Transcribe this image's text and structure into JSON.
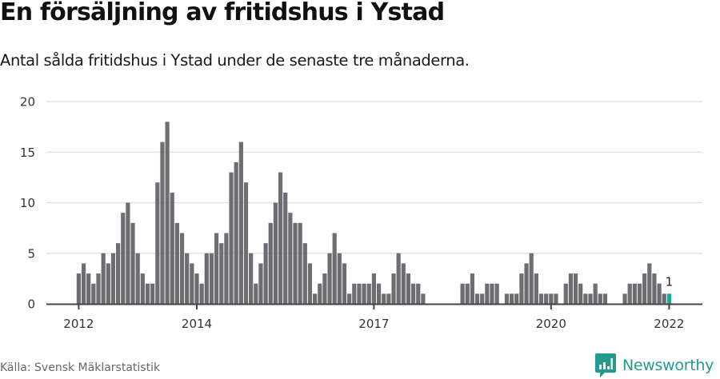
{
  "header": {
    "title": "En försäljning av fritidshus i Ystad",
    "subtitle": "Antal sålda fritidshus i Ystad under de senaste tre månaderna."
  },
  "footer": {
    "source": "Källa: Svensk Mäklarstatistik",
    "brand": "Newsworthy",
    "brand_icon": "bar-chart-speech-bubble-icon"
  },
  "colors": {
    "bar": "#6e6d72",
    "highlight": "#1fa89b",
    "grid": "#e3e3e3",
    "axis": "#444444",
    "brand": "#229a8e"
  },
  "chart_data": {
    "type": "bar",
    "title": "En försäljning av fritidshus i Ystad",
    "subtitle": "Antal sålda fritidshus i Ystad under de senaste tre månaderna.",
    "xlabel": "",
    "ylabel": "",
    "ylim": [
      0,
      20
    ],
    "yticks": [
      0,
      5,
      10,
      15,
      20
    ],
    "xticks": [
      {
        "label": "2012",
        "index": 0
      },
      {
        "label": "2014",
        "index": 24
      },
      {
        "label": "2017",
        "index": 60
      },
      {
        "label": "2020",
        "index": 96
      },
      {
        "label": "2022",
        "index": 120
      }
    ],
    "grid": true,
    "legend": null,
    "frequency": "monthly",
    "start": "2012-01",
    "end": "2022-01",
    "categories": [
      "2012-01",
      "2012-02",
      "2012-03",
      "2012-04",
      "2012-05",
      "2012-06",
      "2012-07",
      "2012-08",
      "2012-09",
      "2012-10",
      "2012-11",
      "2012-12",
      "2013-01",
      "2013-02",
      "2013-03",
      "2013-04",
      "2013-05",
      "2013-06",
      "2013-07",
      "2013-08",
      "2013-09",
      "2013-10",
      "2013-11",
      "2013-12",
      "2014-01",
      "2014-02",
      "2014-03",
      "2014-04",
      "2014-05",
      "2014-06",
      "2014-07",
      "2014-08",
      "2014-09",
      "2014-10",
      "2014-11",
      "2014-12",
      "2015-01",
      "2015-02",
      "2015-03",
      "2015-04",
      "2015-05",
      "2015-06",
      "2015-07",
      "2015-08",
      "2015-09",
      "2015-10",
      "2015-11",
      "2015-12",
      "2016-01",
      "2016-02",
      "2016-03",
      "2016-04",
      "2016-05",
      "2016-06",
      "2016-07",
      "2016-08",
      "2016-09",
      "2016-10",
      "2016-11",
      "2016-12",
      "2017-01",
      "2017-02",
      "2017-03",
      "2017-04",
      "2017-05",
      "2017-06",
      "2017-07",
      "2017-08",
      "2017-09",
      "2017-10",
      "2017-11",
      "2017-12",
      "2018-01",
      "2018-02",
      "2018-03",
      "2018-04",
      "2018-05",
      "2018-06",
      "2018-07",
      "2018-08",
      "2018-09",
      "2018-10",
      "2018-11",
      "2018-12",
      "2019-01",
      "2019-02",
      "2019-03",
      "2019-04",
      "2019-05",
      "2019-06",
      "2019-07",
      "2019-08",
      "2019-09",
      "2019-10",
      "2019-11",
      "2019-12",
      "2020-01",
      "2020-02",
      "2020-03",
      "2020-04",
      "2020-05",
      "2020-06",
      "2020-07",
      "2020-08",
      "2020-09",
      "2020-10",
      "2020-11",
      "2020-12",
      "2021-01",
      "2021-02",
      "2021-03",
      "2021-04",
      "2021-05",
      "2021-06",
      "2021-07",
      "2021-08",
      "2021-09",
      "2021-10",
      "2021-11",
      "2021-12",
      "2022-01"
    ],
    "values": [
      3,
      4,
      3,
      2,
      3,
      5,
      4,
      5,
      6,
      9,
      10,
      8,
      5,
      3,
      2,
      2,
      12,
      16,
      18,
      11,
      8,
      7,
      5,
      4,
      3,
      2,
      5,
      5,
      7,
      6,
      7,
      13,
      14,
      16,
      12,
      5,
      2,
      4,
      6,
      8,
      10,
      13,
      11,
      9,
      8,
      8,
      6,
      4,
      1,
      2,
      3,
      5,
      7,
      5,
      4,
      1,
      2,
      2,
      2,
      2,
      3,
      2,
      1,
      1,
      3,
      5,
      4,
      3,
      2,
      2,
      1,
      0,
      0,
      0,
      0,
      0,
      0,
      0,
      2,
      2,
      3,
      1,
      1,
      2,
      2,
      2,
      0,
      1,
      1,
      1,
      3,
      4,
      5,
      3,
      1,
      1,
      1,
      1,
      0,
      2,
      3,
      3,
      2,
      1,
      1,
      2,
      1,
      1,
      0,
      0,
      0,
      1,
      2,
      2,
      2,
      3,
      4,
      3,
      2,
      1,
      1
    ],
    "highlight": {
      "index": 120,
      "label": "1"
    }
  }
}
